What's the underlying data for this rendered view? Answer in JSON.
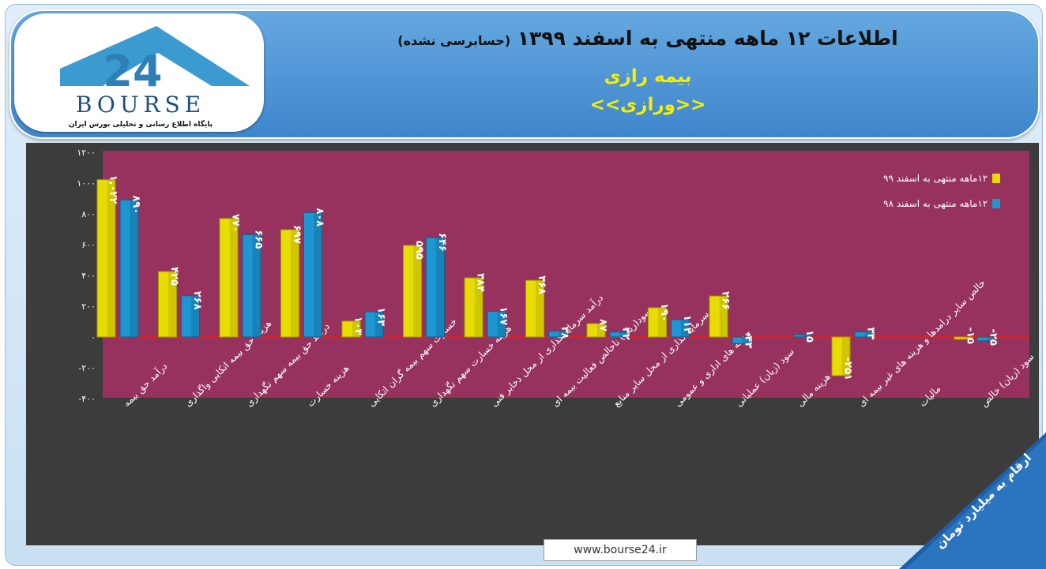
{
  "header": {
    "title_main": "اطلاعات ۱۲ ماهه منتهی به اسفند ۱۳۹۹",
    "title_sub": "(حسابرسی نشده)",
    "company": "بیمه رازی",
    "symbol": "<<ورازی>>"
  },
  "logo": {
    "text": "BOURSE",
    "number": "24",
    "tagline": "پایگاه اطلاع رسانی و تحلیلی بورس ایران"
  },
  "website": "www.bourse24.ir",
  "unit_label": "ارقام به میلیارد تومان",
  "colors": {
    "plot_bg": "#96325d",
    "panel_bg": "#3c3c3c",
    "series_99": "#e6dc00",
    "series_98": "#1d96d2",
    "zero_line": "#e0201a"
  },
  "chart_data": {
    "type": "bar",
    "categories": [
      "درآمد حق بیمه",
      "هزینه حق بیمه اتکایی واگذاری",
      "درآمد حق بیمه سهم نگهداری",
      "هزینه خسارت",
      "خسارت سهم بیمه گران اتکایی",
      "هزینه خسارت سهم نگهداری",
      "درآمد سرمایه گذاری از محل ذخایر فنی",
      "سود(زیان) ناخالص فعالیت بیمه ای",
      "درامد سرمایه گذاری از محل سایر منابع",
      "هزینه های اداری و عمومی",
      "سود (زیان) عملیاتی",
      "هزینه مالی",
      "خالص سایر درامدها و هزینه های غیر بیمه ای",
      "مالیات",
      "سود (زیان) خالص"
    ],
    "series": [
      {
        "name": "۱۲ماهه منتهی به اسفند ۹۹",
        "values": [
          1022,
          425,
          770,
          697,
          103,
          595,
          384,
          368,
          87,
          190,
          266,
          0,
          -251,
          0,
          -15
        ],
        "labels": [
          "۱,۰۲۲",
          "۴۲۵",
          "۷۷۰",
          "۶۹۷",
          "۱۰۳",
          "۵۹۵",
          "۳۸۴",
          "۳۶۸",
          "۸۷",
          "۱۹۰",
          "۲۶۶",
          "",
          "-۲۵۱",
          "",
          "-۱۵"
        ]
      },
      {
        "name": "۱۲ماهه منتهی به اسفند ۹۸",
        "values": [
          890,
          268,
          665,
          808,
          163,
          646,
          167,
          38,
          32,
          113,
          -43,
          15,
          33,
          0,
          -25
        ],
        "labels": [
          "۸۹۰",
          "۲۶۸",
          "۶۶۵",
          "۸۰۸",
          "۱۶۳",
          "۶۴۶",
          "۱۶۷",
          "۳۸",
          "۳۲",
          "۱۱۳",
          "-۴۳",
          "۱۵",
          "۳۳",
          "",
          "-۲۵"
        ]
      }
    ],
    "y_ticks": [
      "۱۲۰۰",
      "۱۰۰۰",
      "۸۰۰",
      "۶۰۰",
      "۴۰۰",
      "۲۰۰",
      "۰",
      "-۲۰۰",
      "-۴۰۰"
    ],
    "ylim": [
      -400,
      1200
    ],
    "legend_position": "top-right",
    "grid": false
  }
}
